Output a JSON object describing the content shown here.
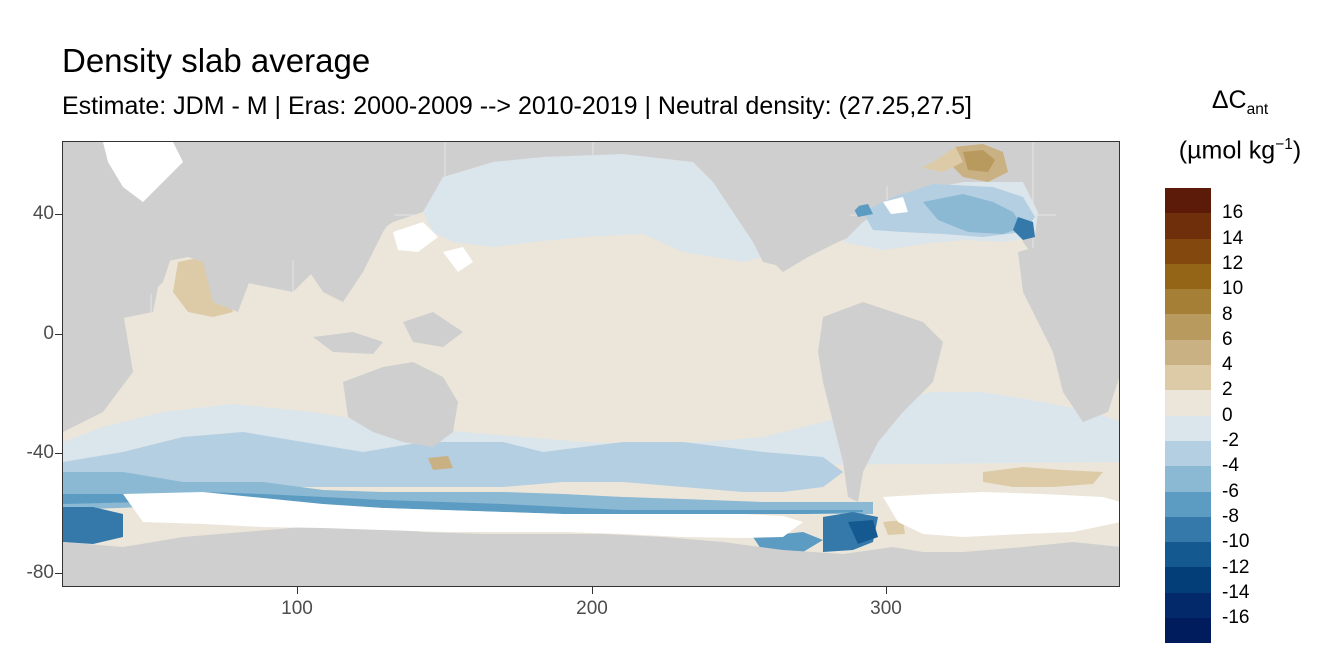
{
  "title": "Density slab average",
  "subtitle": "Estimate: JDM - M | Eras: 2000-2009 --> 2010-2019 | Neutral density: (27.25,27.5]",
  "legend": {
    "title_symbol": "ΔC",
    "title_sub": "ant",
    "unit_main": "(µmol kg",
    "unit_sup": "−1",
    "unit_close": ")",
    "colors": [
      "#5c1a08",
      "#6e2f0a",
      "#82480d",
      "#946417",
      "#a57f36",
      "#b8995e",
      "#cab183",
      "#ddcba8",
      "#ece6da",
      "#dbe5ec",
      "#b4cfe1",
      "#8bb8d3",
      "#5c9bc2",
      "#3579ab",
      "#14598f",
      "#033e78",
      "#03296a",
      "#001c5c"
    ],
    "labels": [
      "16",
      "14",
      "12",
      "10",
      "8",
      "6",
      "4",
      "2",
      "0",
      "-2",
      "-4",
      "-6",
      "-8",
      "-10",
      "-12",
      "-14",
      "-16"
    ]
  },
  "axes": {
    "x_ticks": [
      "100",
      "200",
      "300"
    ],
    "y_ticks": [
      "40",
      "0",
      "-40",
      "-80"
    ],
    "x_values": [
      100,
      200,
      300
    ],
    "y_values": [
      40,
      0,
      -40,
      -80
    ],
    "xlim": [
      20,
      380
    ],
    "ylim": [
      -85,
      65
    ]
  },
  "map_colors": {
    "land": "#cfcfcf",
    "no_data": "#ffffff",
    "grid": "#ebebeb",
    "near_zero_pos": "#ece6da",
    "near_zero_neg": "#dbe5ec",
    "minus_4": "#b4cfe1",
    "minus_6": "#8bb8d3",
    "minus_8": "#5c9bc2",
    "minus_10": "#3579ab",
    "minus_12": "#14598f",
    "plus_4": "#ddcba8",
    "plus_6": "#cab183",
    "plus_8": "#b8995e"
  }
}
